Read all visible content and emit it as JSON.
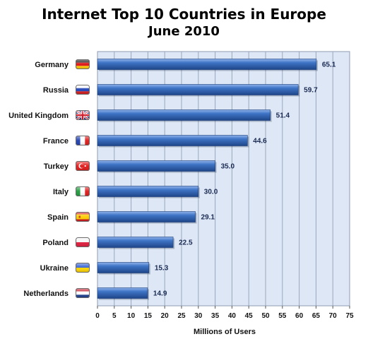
{
  "chart_data": {
    "type": "bar",
    "orientation": "horizontal",
    "title": "Internet Top 10 Countries in Europe",
    "subtitle": "June 2010",
    "xlabel": "Millions of Users",
    "ylabel": "",
    "categories": [
      "Germany",
      "Russia",
      "United Kingdom",
      "France",
      "Turkey",
      "Italy",
      "Spain",
      "Poland",
      "Ukraine",
      "Netherlands"
    ],
    "values": [
      65.1,
      59.7,
      51.4,
      44.6,
      35.0,
      30.0,
      29.1,
      22.5,
      15.3,
      14.9
    ],
    "value_labels": [
      "65.1",
      "59.7",
      "51.4",
      "44.6",
      "35.0",
      "30.0",
      "29.1",
      "22.5",
      "15.3",
      "14.9"
    ],
    "xlim": [
      0,
      75
    ],
    "xticks": [
      "0",
      "5",
      "10",
      "15",
      "20",
      "25",
      "30",
      "35",
      "40",
      "45",
      "50",
      "55",
      "60",
      "65",
      "70",
      "75"
    ],
    "grid": "vertical",
    "legend": "none",
    "flags": [
      "germany-flag-icon",
      "russia-flag-icon",
      "uk-flag-icon",
      "france-flag-icon",
      "turkey-flag-icon",
      "italy-flag-icon",
      "spain-flag-icon",
      "poland-flag-icon",
      "ukraine-flag-icon",
      "netherlands-flag-icon"
    ],
    "colors": {
      "bar": "#2a5aa8",
      "plot_background": "#dde7f5",
      "gridline": "#9aa7bc"
    }
  }
}
